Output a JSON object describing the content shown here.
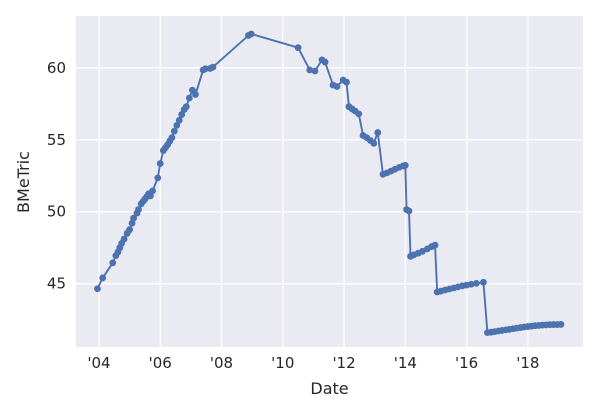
{
  "chart_data": {
    "type": "line",
    "title": "",
    "xlabel": "Date",
    "ylabel": "BMeTric",
    "legend": null,
    "grid": true,
    "xlim": [
      2003.25,
      2019.8
    ],
    "ylim": [
      40.6,
      63.6
    ],
    "xticks": {
      "years": [
        2004,
        2006,
        2008,
        2010,
        2012,
        2014,
        2016,
        2018
      ],
      "labels": [
        "'04",
        "'06",
        "'08",
        "'10",
        "'12",
        "'14",
        "'16",
        "'18"
      ]
    },
    "yticks": {
      "values": [
        45,
        50,
        55,
        60
      ],
      "labels": [
        "45",
        "50",
        "55",
        "60"
      ]
    },
    "colors": {
      "line": "#4c72b0",
      "marker": "#4c72b0",
      "plot_background": "#eaeaf2",
      "grid": "#ffffff",
      "text": "#262626",
      "figure_background": "#ffffff"
    },
    "marker": "o",
    "series": [
      {
        "name": "BMeTric",
        "points": [
          [
            2003.95,
            44.65
          ],
          [
            2004.12,
            45.4
          ],
          [
            2004.45,
            46.45
          ],
          [
            2004.55,
            46.95
          ],
          [
            2004.62,
            47.2
          ],
          [
            2004.68,
            47.5
          ],
          [
            2004.74,
            47.8
          ],
          [
            2004.82,
            48.1
          ],
          [
            2004.92,
            48.5
          ],
          [
            2005.0,
            48.75
          ],
          [
            2005.08,
            49.2
          ],
          [
            2005.13,
            49.55
          ],
          [
            2005.24,
            49.9
          ],
          [
            2005.29,
            50.15
          ],
          [
            2005.38,
            50.55
          ],
          [
            2005.44,
            50.72
          ],
          [
            2005.5,
            50.88
          ],
          [
            2005.56,
            51.05
          ],
          [
            2005.62,
            51.25
          ],
          [
            2005.68,
            51.1
          ],
          [
            2005.75,
            51.45
          ],
          [
            2005.92,
            52.35
          ],
          [
            2006.0,
            53.35
          ],
          [
            2006.1,
            54.25
          ],
          [
            2006.17,
            54.45
          ],
          [
            2006.24,
            54.65
          ],
          [
            2006.31,
            54.9
          ],
          [
            2006.38,
            55.15
          ],
          [
            2006.46,
            55.6
          ],
          [
            2006.54,
            56.0
          ],
          [
            2006.62,
            56.35
          ],
          [
            2006.7,
            56.75
          ],
          [
            2006.78,
            57.1
          ],
          [
            2006.85,
            57.3
          ],
          [
            2006.95,
            57.9
          ],
          [
            2007.05,
            58.45
          ],
          [
            2007.15,
            58.15
          ],
          [
            2007.4,
            59.85
          ],
          [
            2007.47,
            59.93
          ],
          [
            2007.63,
            59.95
          ],
          [
            2007.72,
            60.05
          ],
          [
            2008.88,
            62.25
          ],
          [
            2008.97,
            62.35
          ],
          [
            2010.5,
            61.4
          ],
          [
            2010.88,
            59.85
          ],
          [
            2011.05,
            59.78
          ],
          [
            2011.28,
            60.55
          ],
          [
            2011.38,
            60.4
          ],
          [
            2011.64,
            58.8
          ],
          [
            2011.77,
            58.7
          ],
          [
            2011.97,
            59.15
          ],
          [
            2012.08,
            59.0
          ],
          [
            2012.16,
            57.3
          ],
          [
            2012.26,
            57.15
          ],
          [
            2012.36,
            57.0
          ],
          [
            2012.48,
            56.8
          ],
          [
            2012.62,
            55.3
          ],
          [
            2012.74,
            55.15
          ],
          [
            2012.86,
            54.95
          ],
          [
            2012.97,
            54.75
          ],
          [
            2013.1,
            55.5
          ],
          [
            2013.27,
            52.6
          ],
          [
            2013.4,
            52.7
          ],
          [
            2013.53,
            52.82
          ],
          [
            2013.66,
            52.95
          ],
          [
            2013.8,
            53.08
          ],
          [
            2013.93,
            53.18
          ],
          [
            2014.0,
            53.22
          ],
          [
            2014.04,
            50.15
          ],
          [
            2014.12,
            50.05
          ],
          [
            2014.17,
            46.9
          ],
          [
            2014.28,
            47.0
          ],
          [
            2014.42,
            47.12
          ],
          [
            2014.56,
            47.25
          ],
          [
            2014.72,
            47.42
          ],
          [
            2014.86,
            47.58
          ],
          [
            2014.97,
            47.68
          ],
          [
            2015.04,
            44.42
          ],
          [
            2015.16,
            44.48
          ],
          [
            2015.3,
            44.56
          ],
          [
            2015.44,
            44.63
          ],
          [
            2015.58,
            44.7
          ],
          [
            2015.72,
            44.78
          ],
          [
            2015.86,
            44.85
          ],
          [
            2016.0,
            44.9
          ],
          [
            2016.15,
            44.96
          ],
          [
            2016.32,
            45.02
          ],
          [
            2016.55,
            45.1
          ],
          [
            2016.68,
            41.6
          ],
          [
            2016.8,
            41.63
          ],
          [
            2016.92,
            41.67
          ],
          [
            2017.04,
            41.71
          ],
          [
            2017.16,
            41.75
          ],
          [
            2017.28,
            41.79
          ],
          [
            2017.4,
            41.83
          ],
          [
            2017.52,
            41.87
          ],
          [
            2017.64,
            41.91
          ],
          [
            2017.76,
            41.95
          ],
          [
            2017.88,
            41.99
          ],
          [
            2018.0,
            42.02
          ],
          [
            2018.12,
            42.05
          ],
          [
            2018.24,
            42.08
          ],
          [
            2018.36,
            42.1
          ],
          [
            2018.48,
            42.12
          ],
          [
            2018.6,
            42.14
          ],
          [
            2018.72,
            42.15
          ],
          [
            2018.84,
            42.16
          ],
          [
            2018.96,
            42.16
          ],
          [
            2019.08,
            42.17
          ]
        ]
      }
    ]
  }
}
